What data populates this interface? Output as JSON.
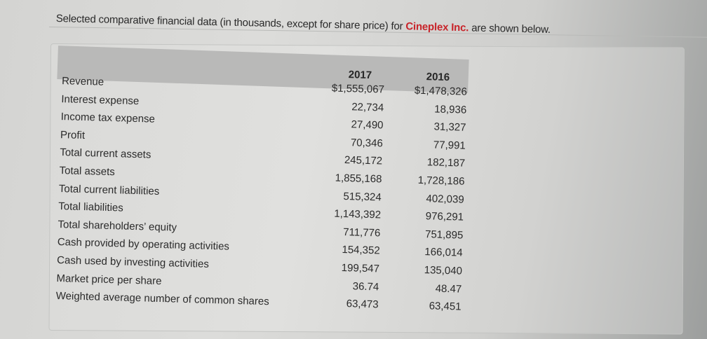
{
  "intro": {
    "prefix": "Selected comparative financial data (in thousands, except for share price) for ",
    "company": "Cineplex Inc.",
    "suffix": " are shown below.",
    "company_color": "#c8252b"
  },
  "table": {
    "columns": [
      "2017",
      "2016"
    ],
    "rows": [
      {
        "label": "Revenue",
        "y2017": "$1,555,067",
        "y2016": "$1,478,326"
      },
      {
        "label": "Interest expense",
        "y2017": "22,734",
        "y2016": "18,936"
      },
      {
        "label": "Income tax expense",
        "y2017": "27,490",
        "y2016": "31,327"
      },
      {
        "label": "Profit",
        "y2017": "70,346",
        "y2016": "77,991"
      },
      {
        "label": "Total current assets",
        "y2017": "245,172",
        "y2016": "182,187"
      },
      {
        "label": "Total assets",
        "y2017": "1,855,168",
        "y2016": "1,728,186"
      },
      {
        "label": "Total current liabilities",
        "y2017": "515,324",
        "y2016": "402,039"
      },
      {
        "label": "Total liabilities",
        "y2017": "1,143,392",
        "y2016": "976,291"
      },
      {
        "label": "Total shareholders’ equity",
        "y2017": "711,776",
        "y2016": "751,895"
      },
      {
        "label": "Cash provided by operating activities",
        "y2017": "154,352",
        "y2016": "166,014"
      },
      {
        "label": "Cash used by investing activities",
        "y2017": "199,547",
        "y2016": "135,040"
      },
      {
        "label": "Market price per share",
        "y2017": "36.74",
        "y2016": "48.47"
      },
      {
        "label": "Weighted average number of common shares",
        "y2017": "63,473",
        "y2016": "63,451"
      }
    ]
  }
}
